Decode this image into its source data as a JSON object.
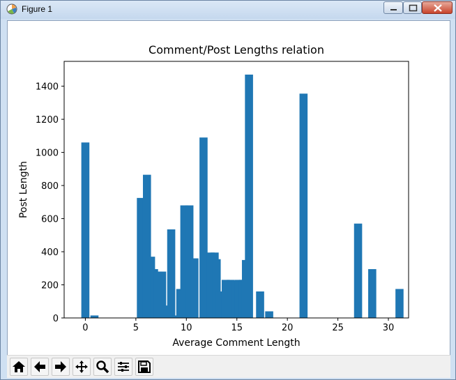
{
  "window": {
    "title": "Figure 1"
  },
  "toolbar": {
    "buttons": [
      {
        "name": "home-icon"
      },
      {
        "name": "back-icon"
      },
      {
        "name": "forward-icon"
      },
      {
        "name": "pan-icon"
      },
      {
        "name": "zoom-icon"
      },
      {
        "name": "configure-subplots-icon"
      },
      {
        "name": "save-icon"
      }
    ]
  },
  "colors": {
    "bar": "#1f77b4",
    "axes": "#000000",
    "titlebar": "#cfe0f2",
    "close_button": "#c8442c"
  },
  "chart_data": {
    "type": "bar",
    "title": "Comment/Post Lengths relation",
    "xlabel": "Average Comment Length",
    "ylabel": "Post Length",
    "xlim": [
      -2.1,
      32.0
    ],
    "ylim": [
      0,
      1550
    ],
    "xticks": [
      0,
      5,
      10,
      15,
      20,
      25,
      30
    ],
    "yticks": [
      0,
      200,
      400,
      600,
      800,
      1000,
      1200,
      1400
    ],
    "grid": false,
    "bars": [
      {
        "x": 0.0,
        "y": 1060
      },
      {
        "x": 0.9,
        "y": 15
      },
      {
        "x": 5.5,
        "y": 725
      },
      {
        "x": 6.1,
        "y": 865
      },
      {
        "x": 6.5,
        "y": 370
      },
      {
        "x": 6.8,
        "y": 295
      },
      {
        "x": 7.2,
        "y": 280
      },
      {
        "x": 7.6,
        "y": 280
      },
      {
        "x": 8.0,
        "y": 75
      },
      {
        "x": 8.5,
        "y": 535
      },
      {
        "x": 9.0,
        "y": 15
      },
      {
        "x": 9.4,
        "y": 175
      },
      {
        "x": 9.8,
        "y": 680
      },
      {
        "x": 10.3,
        "y": 680
      },
      {
        "x": 10.8,
        "y": 360
      },
      {
        "x": 11.7,
        "y": 1090
      },
      {
        "x": 12.4,
        "y": 395
      },
      {
        "x": 12.8,
        "y": 395
      },
      {
        "x": 13.0,
        "y": 355
      },
      {
        "x": 13.3,
        "y": 160
      },
      {
        "x": 13.9,
        "y": 230
      },
      {
        "x": 14.4,
        "y": 230
      },
      {
        "x": 14.8,
        "y": 225
      },
      {
        "x": 15.2,
        "y": 230
      },
      {
        "x": 15.6,
        "y": 230
      },
      {
        "x": 15.9,
        "y": 350
      },
      {
        "x": 16.2,
        "y": 1470
      },
      {
        "x": 17.3,
        "y": 160
      },
      {
        "x": 18.2,
        "y": 40
      },
      {
        "x": 21.6,
        "y": 1355
      },
      {
        "x": 27.0,
        "y": 570
      },
      {
        "x": 28.4,
        "y": 295
      },
      {
        "x": 31.1,
        "y": 175
      }
    ],
    "bar_width": 0.8
  }
}
